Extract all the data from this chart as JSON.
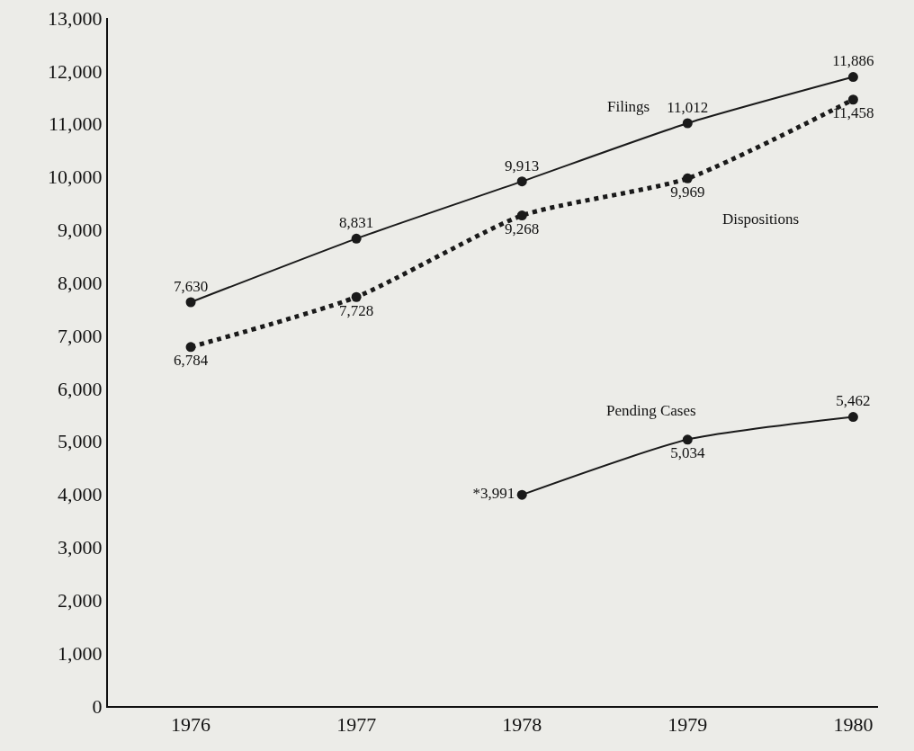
{
  "chart_data": {
    "type": "line",
    "categories": [
      "1976",
      "1977",
      "1978",
      "1979",
      "1980"
    ],
    "series": [
      {
        "name": "Filings",
        "color": "#1a1a1a",
        "line_style": "solid",
        "values": [
          7630,
          8831,
          9913,
          11012,
          11886
        ],
        "value_labels": [
          "7,630",
          "8,831",
          "9,913",
          "11,012",
          "11,886"
        ]
      },
      {
        "name": "Dispositions",
        "color": "#1a1a1a",
        "line_style": "dotted",
        "values": [
          6784,
          7728,
          9268,
          9969,
          11458
        ],
        "value_labels": [
          "6,784",
          "7,728",
          "9,268",
          "9,969",
          "11,458"
        ]
      },
      {
        "name": "Pending Cases",
        "color": "#1a1a1a",
        "line_style": "solid",
        "values": [
          null,
          null,
          3991,
          5034,
          5462
        ],
        "value_labels": [
          null,
          null,
          "*3,991",
          "5,034",
          "5,462"
        ]
      }
    ],
    "ylim": [
      0,
      13000
    ],
    "yticks": [
      {
        "value": 0,
        "label": "0"
      },
      {
        "value": 1000,
        "label": "1,000"
      },
      {
        "value": 2000,
        "label": "2,000"
      },
      {
        "value": 3000,
        "label": "3,000"
      },
      {
        "value": 4000,
        "label": "4,000"
      },
      {
        "value": 5000,
        "label": "5,000"
      },
      {
        "value": 6000,
        "label": "6,000"
      },
      {
        "value": 7000,
        "label": "7,000"
      },
      {
        "value": 8000,
        "label": "8,000"
      },
      {
        "value": 9000,
        "label": "9,000"
      },
      {
        "value": 10000,
        "label": "10,000"
      },
      {
        "value": 11000,
        "label": "11,000"
      },
      {
        "value": 12000,
        "label": "12,000"
      },
      {
        "value": 13000,
        "label": "13,000"
      }
    ],
    "grid": false,
    "legend": false,
    "marker": "circle"
  }
}
